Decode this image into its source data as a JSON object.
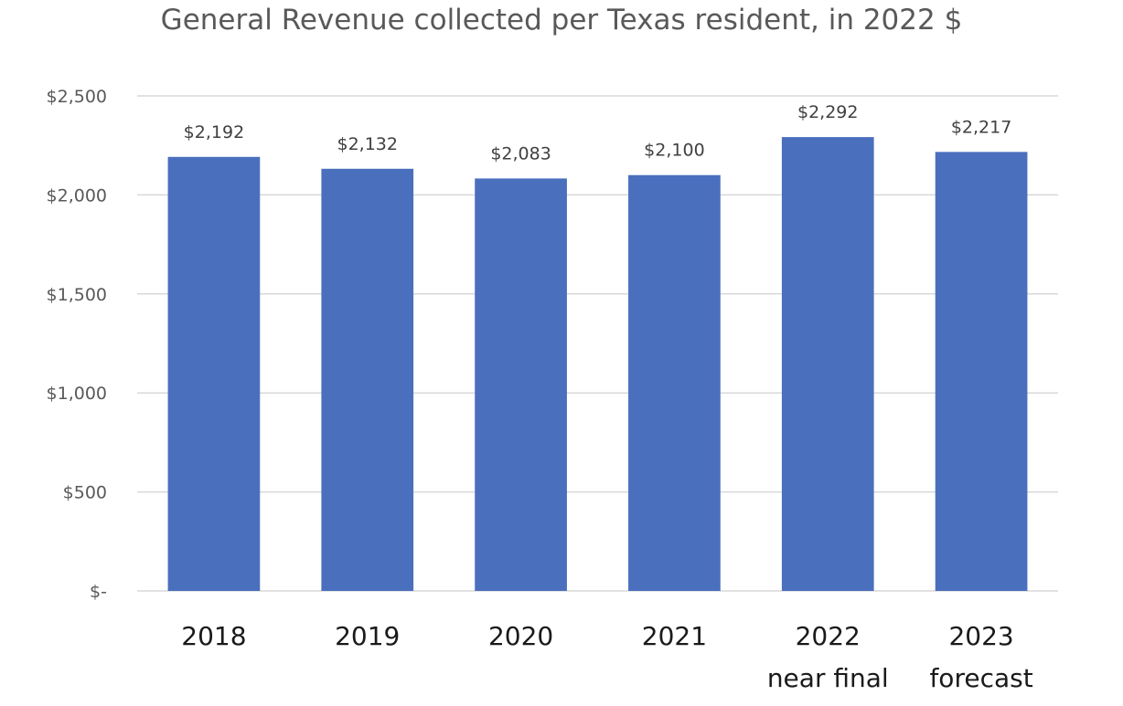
{
  "chart_data": {
    "type": "bar",
    "title": "General Revenue collected per Texas resident, in 2022 $",
    "xlabel": "",
    "ylabel": "",
    "categories": [
      [
        "2018"
      ],
      [
        "2019"
      ],
      [
        "2020"
      ],
      [
        "2021"
      ],
      [
        "2022",
        "near final"
      ],
      [
        "2023",
        "forecast"
      ]
    ],
    "values": [
      2192,
      2132,
      2083,
      2100,
      2292,
      2217
    ],
    "data_labels": [
      "$2,192",
      "$2,132",
      "$2,083",
      "$2,100",
      "$2,292",
      "$2,217"
    ],
    "ylim": [
      0,
      2500
    ],
    "yticks": [
      0,
      500,
      1000,
      1500,
      2000,
      2500
    ],
    "ytick_labels": [
      "$-",
      "$500",
      "$1,000",
      "$1,500",
      "$2,000",
      "$2,500"
    ],
    "grid": true,
    "legend": "none",
    "colors": {
      "bar": "#4A6FBD",
      "grid": "#D9D9D9",
      "title": "#595959",
      "axis_text": "#595959"
    }
  }
}
